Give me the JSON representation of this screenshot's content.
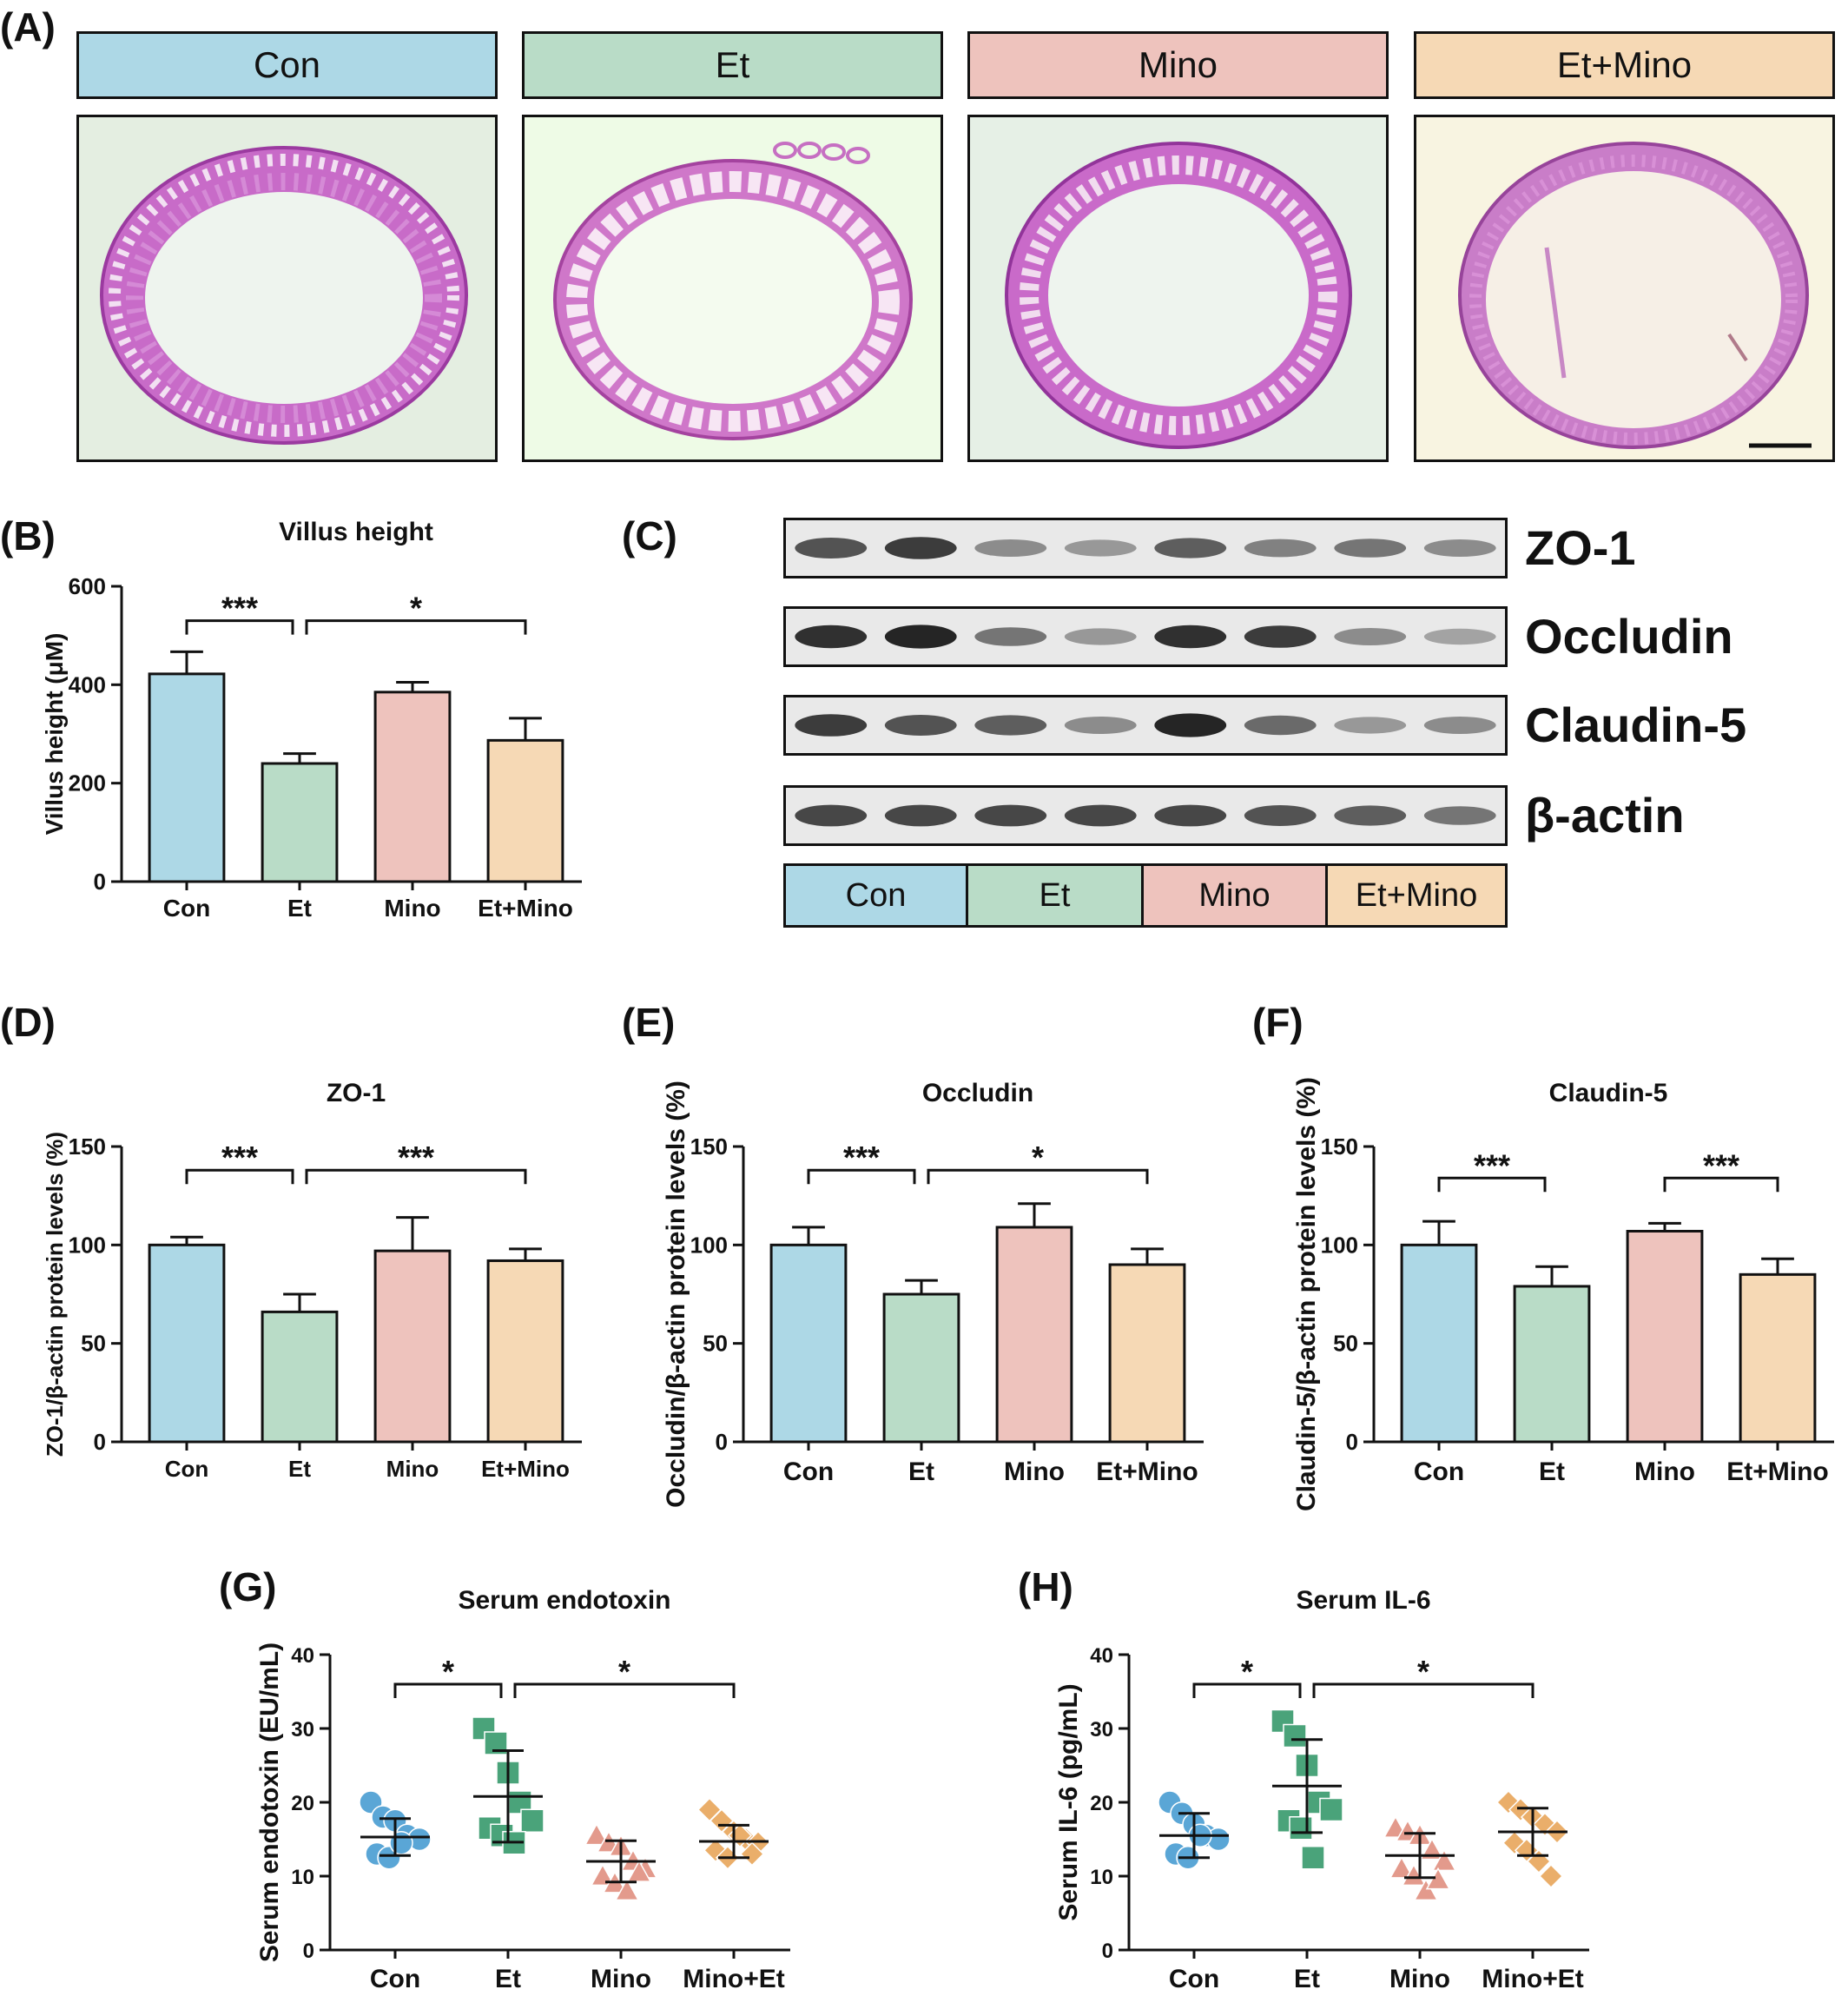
{
  "colors": {
    "con": "#add8e6",
    "et": "#b9dcc7",
    "mino": "#eec3bd",
    "etmino": "#f6d9b5",
    "con_dot": "#5aa6d6",
    "et_dot": "#4aa37a",
    "mino_dot": "#e39a8c",
    "etmino_dot": "#eaae6a"
  },
  "panels": {
    "A": "(A)",
    "B": "(B)",
    "C": "(C)",
    "D": "(D)",
    "E": "(E)",
    "F": "(F)",
    "G": "(G)",
    "H": "(H)"
  },
  "histology": {
    "groups": [
      "Con",
      "Et",
      "Mino",
      "Et+Mino"
    ]
  },
  "western_blot": {
    "proteins": [
      "ZO-1",
      "Occludin",
      "Claudin-5",
      "β-actin"
    ],
    "groups": [
      "Con",
      "Et",
      "Mino",
      "Et+Mino"
    ],
    "band_intensity": [
      [
        0.75,
        0.85,
        0.5,
        0.45,
        0.7,
        0.55,
        0.6,
        0.5
      ],
      [
        0.9,
        0.95,
        0.6,
        0.45,
        0.9,
        0.85,
        0.5,
        0.4
      ],
      [
        0.85,
        0.75,
        0.7,
        0.5,
        0.95,
        0.65,
        0.45,
        0.5
      ],
      [
        0.8,
        0.8,
        0.8,
        0.8,
        0.8,
        0.75,
        0.7,
        0.6
      ]
    ]
  },
  "chart_data": [
    {
      "id": "B",
      "type": "bar",
      "title": "Villus height",
      "ylabel": "Villus height (μM)",
      "categories": [
        "Con",
        "Et",
        "Mino",
        "Et+Mino"
      ],
      "values": [
        422,
        240,
        385,
        287
      ],
      "errors": [
        45,
        20,
        20,
        45
      ],
      "ylim": [
        0,
        600
      ],
      "yticks": [
        0,
        200,
        400,
        600
      ],
      "sig": [
        {
          "from": 0,
          "to": 1,
          "label": "***",
          "y": 530
        },
        {
          "from": 1,
          "to": 3,
          "label": "*",
          "y": 530
        }
      ]
    },
    {
      "id": "D",
      "type": "bar",
      "title": "ZO-1",
      "ylabel": "ZO-1/β-actin protein levels (%)",
      "categories": [
        "Con",
        "Et",
        "Mino",
        "Et+Mino"
      ],
      "values": [
        100,
        66,
        97,
        92
      ],
      "errors": [
        4,
        9,
        17,
        6
      ],
      "ylim": [
        0,
        150
      ],
      "yticks": [
        0,
        50,
        100,
        150
      ],
      "sig": [
        {
          "from": 0,
          "to": 1,
          "label": "***",
          "y": 138
        },
        {
          "from": 1,
          "to": 3,
          "label": "***",
          "y": 138
        }
      ]
    },
    {
      "id": "E",
      "type": "bar",
      "title": "Occludin",
      "ylabel": "Occludin/β-actin protein levels (%)",
      "categories": [
        "Con",
        "Et",
        "Mino",
        "Et+Mino"
      ],
      "values": [
        100,
        75,
        109,
        90
      ],
      "errors": [
        9,
        7,
        12,
        8
      ],
      "ylim": [
        0,
        150
      ],
      "yticks": [
        0,
        50,
        100,
        150
      ],
      "sig": [
        {
          "from": 0,
          "to": 1,
          "label": "***",
          "y": 138
        },
        {
          "from": 1,
          "to": 3,
          "label": "*",
          "y": 138
        }
      ]
    },
    {
      "id": "F",
      "type": "bar",
      "title": "Claudin-5",
      "ylabel": "Claudin-5/β-actin protein levels (%)",
      "categories": [
        "Con",
        "Et",
        "Mino",
        "Et+Mino"
      ],
      "values": [
        100,
        79,
        107,
        85
      ],
      "errors": [
        12,
        10,
        4,
        8
      ],
      "ylim": [
        0,
        150
      ],
      "yticks": [
        0,
        50,
        100,
        150
      ],
      "sig": [
        {
          "from": 0,
          "to": 1,
          "label": "***",
          "y": 134
        },
        {
          "from": 2,
          "to": 3,
          "label": "***",
          "y": 134
        }
      ]
    },
    {
      "id": "G",
      "type": "scatter",
      "title": "Serum endotoxin",
      "ylabel": "Serum endotoxin (EU/mL)",
      "categories": [
        "Con",
        "Et",
        "Mino",
        "Mino+Et"
      ],
      "points": [
        [
          20,
          18,
          17.5,
          15.5,
          15,
          13,
          12.5,
          14.5
        ],
        [
          30,
          28,
          24,
          20,
          17.5,
          16.5,
          15.5,
          14.5
        ],
        [
          15.5,
          14.5,
          14,
          12,
          11,
          10,
          9,
          8,
          10.5
        ],
        [
          19,
          17.5,
          16,
          15,
          14.5,
          13.5,
          12.5,
          15.5,
          13
        ]
      ],
      "means": [
        15.3,
        20.8,
        12,
        14.7
      ],
      "sds": [
        2.5,
        6.2,
        2.8,
        2.2
      ],
      "ylim": [
        0,
        40
      ],
      "yticks": [
        0,
        10,
        20,
        30,
        40
      ],
      "sig": [
        {
          "from": 0,
          "to": 1,
          "label": "*",
          "y": 36
        },
        {
          "from": 1,
          "to": 3,
          "label": "*",
          "y": 36
        }
      ]
    },
    {
      "id": "H",
      "type": "scatter",
      "title": "Serum IL-6",
      "ylabel": "Serum IL-6 (pg/mL)",
      "categories": [
        "Con",
        "Et",
        "Mino",
        "Mino+Et"
      ],
      "points": [
        [
          20,
          18.5,
          17,
          15.5,
          15,
          13,
          12.5,
          15.5
        ],
        [
          31,
          29,
          25,
          20,
          19,
          17.5,
          16.5,
          12.5
        ],
        [
          16.5,
          16,
          15.5,
          13.5,
          12,
          11,
          10,
          8,
          9.5
        ],
        [
          20,
          19,
          18,
          17,
          16,
          14.5,
          13.5,
          12,
          10
        ]
      ],
      "means": [
        15.5,
        22.2,
        12.8,
        16
      ],
      "sds": [
        3,
        6.3,
        3,
        3.2
      ],
      "ylim": [
        0,
        40
      ],
      "yticks": [
        0,
        10,
        20,
        30,
        40
      ],
      "sig": [
        {
          "from": 0,
          "to": 1,
          "label": "*",
          "y": 36
        },
        {
          "from": 1,
          "to": 3,
          "label": "*",
          "y": 36
        }
      ]
    }
  ]
}
